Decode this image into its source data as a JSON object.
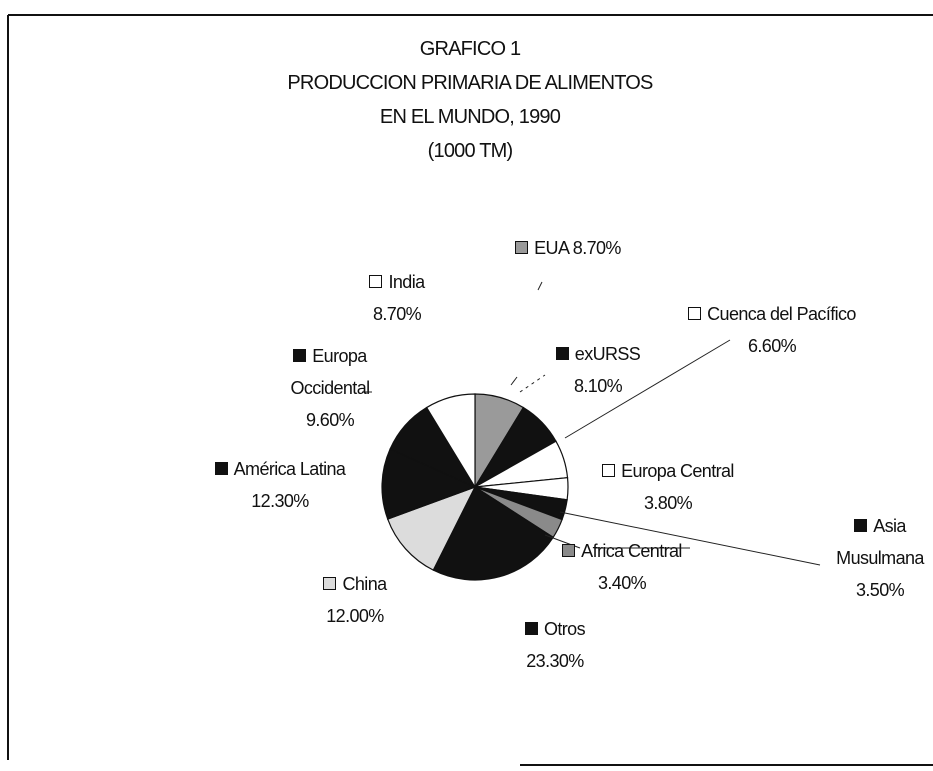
{
  "chart_data": {
    "type": "pie",
    "title": [
      "GRAFICO 1",
      "PRODUCCION PRIMARIA DE ALIMENTOS",
      "EN EL MUNDO, 1990"
    ],
    "subtitle": "(1000 TM)",
    "categories": [
      "EUA",
      "exURSS",
      "Cuenca del Pacífico",
      "Europa Central",
      "Asia Musulmana",
      "Africa Central",
      "Otros",
      "China",
      "América Latina",
      "Europa Occidental",
      "India"
    ],
    "values": [
      8.7,
      8.1,
      6.6,
      3.8,
      3.5,
      3.4,
      23.3,
      12.0,
      12.3,
      9.6,
      8.7
    ],
    "value_labels": [
      "8.70%",
      "8.10%",
      "6.60%",
      "3.80%",
      "3.50%",
      "3.40%",
      "23.30%",
      "12.00%",
      "12.30%",
      "9.60%",
      "8.70%"
    ],
    "colors": [
      "#9a9a9a",
      "#111111",
      "#ffffff",
      "#ffffff",
      "#111111",
      "#8a8a8a",
      "#111111",
      "#dcdcdc",
      "#111111",
      "#111111",
      "#ffffff"
    ]
  }
}
